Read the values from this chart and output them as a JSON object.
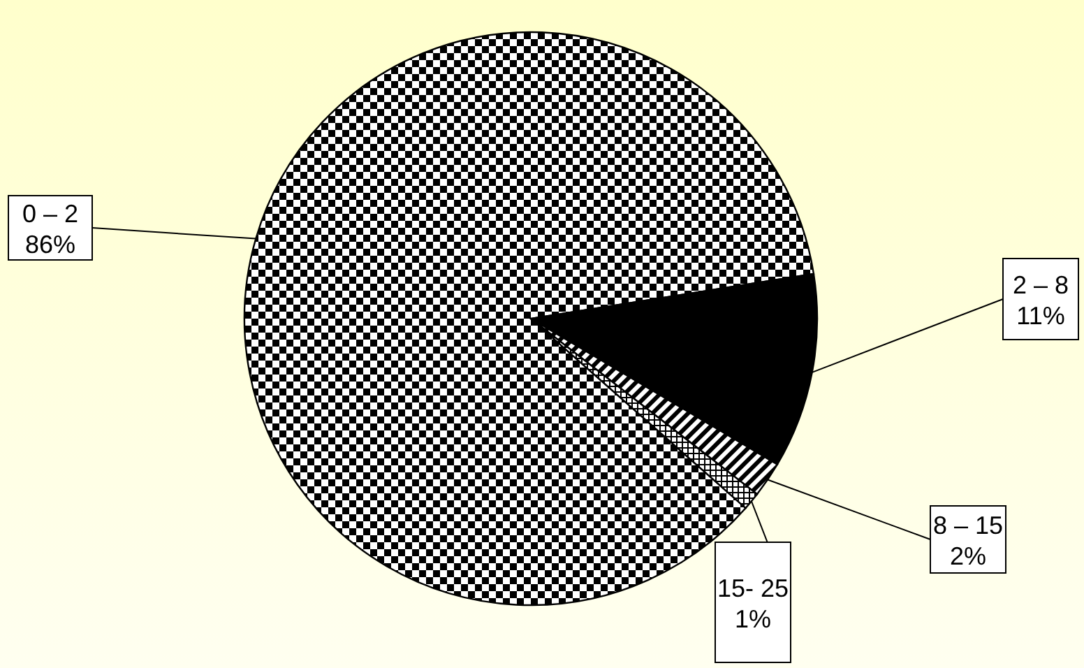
{
  "chart_data": {
    "type": "pie",
    "categories": [
      "0 – 2",
      "2 – 8",
      "8 – 15",
      "15- 25"
    ],
    "values": [
      86,
      11,
      2,
      1
    ],
    "value_labels": [
      "86%",
      "11%",
      "2%",
      "1%"
    ],
    "colors": [
      "#000000",
      "#000000",
      "#000000",
      "#000000"
    ]
  }
}
